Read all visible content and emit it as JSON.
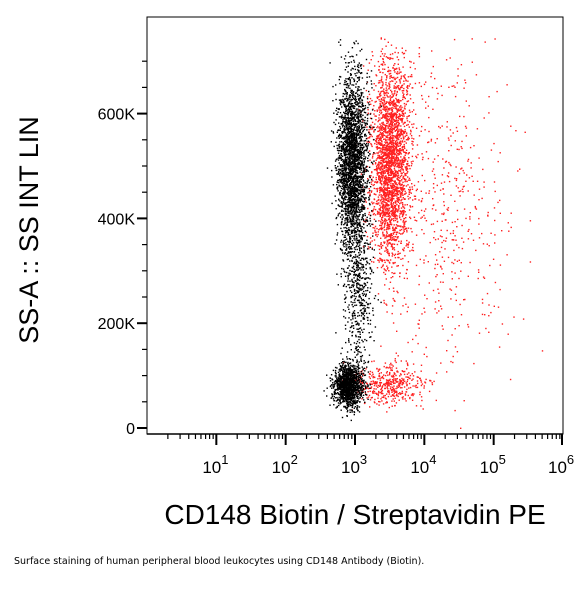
{
  "chart_data": {
    "type": "scatter",
    "xlabel": "CD148 Biotin / Streptavidin PE",
    "ylabel": "SS-A :: SS INT LIN",
    "x_scale": "log",
    "xlim": [
      1,
      1000000
    ],
    "ylim": [
      0,
      750000
    ],
    "x_ticks": [
      {
        "value": 10,
        "base": "10",
        "exp": "1"
      },
      {
        "value": 100,
        "base": "10",
        "exp": "2"
      },
      {
        "value": 1000,
        "base": "10",
        "exp": "3"
      },
      {
        "value": 10000,
        "base": "10",
        "exp": "4"
      },
      {
        "value": 100000,
        "base": "10",
        "exp": "5"
      },
      {
        "value": 1000000,
        "base": "10",
        "exp": "6"
      }
    ],
    "y_ticks": [
      {
        "value": 0,
        "label": "0"
      },
      {
        "value": 200000,
        "label": "200K"
      },
      {
        "value": 400000,
        "label": "400K"
      },
      {
        "value": 600000,
        "label": "600K"
      }
    ],
    "grid": false,
    "legend": "none",
    "series": [
      {
        "color": "#000000",
        "populations": [
          {
            "x_center": 900,
            "y_center": 510000,
            "x_spread_log": 0.11,
            "y_spread": 85000,
            "count": 2600
          },
          {
            "x_center": 780,
            "y_center": 82000,
            "x_spread_log": 0.1,
            "y_spread": 20000,
            "count": 1300
          },
          {
            "x_center": 1100,
            "y_center": 260000,
            "x_spread_log": 0.1,
            "y_spread": 80000,
            "count": 500
          }
        ]
      },
      {
        "color": "#ff2020",
        "populations": [
          {
            "x_center": 3200,
            "y_center": 510000,
            "x_spread_log": 0.14,
            "y_spread": 95000,
            "count": 2600
          },
          {
            "x_center": 3000,
            "y_center": 85000,
            "x_spread_log": 0.25,
            "y_spread": 20000,
            "count": 450
          },
          {
            "x_center": 20000,
            "y_center": 420000,
            "x_spread_log": 0.45,
            "y_spread": 160000,
            "count": 500
          }
        ]
      }
    ]
  },
  "caption": "Surface staining of human peripheral blood leukocytes using CD148 Antibody (Biotin)."
}
